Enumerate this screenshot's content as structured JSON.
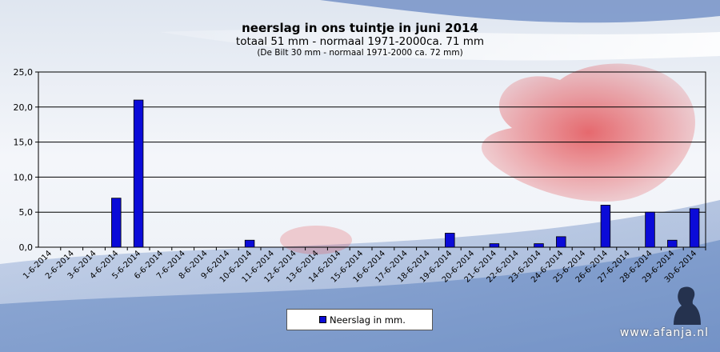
{
  "header": {
    "title": "neerslag in ons tuintje in juni 2014",
    "subtitle": "totaal 51 mm - normaal 1971-2000ca. 71 mm",
    "note": "(De Bilt 30 mm - normaal 1971-2000 ca. 72 mm)"
  },
  "legend": {
    "label": "Neerslag in mm."
  },
  "watermark": {
    "text": "www.afanja.nl"
  },
  "chart_data": {
    "type": "bar",
    "title": "neerslag in ons tuintje in juni 2014",
    "xlabel": "",
    "ylabel": "",
    "ylim": [
      0,
      25
    ],
    "ytick_labels": [
      "0,0",
      "5,0",
      "10,0",
      "15,0",
      "20,0",
      "25,0"
    ],
    "grid": true,
    "legend_position": "bottom-center",
    "bar_color": "#0b0bd8",
    "categories": [
      "1-6-2014",
      "2-6-2014",
      "3-6-2014",
      "4-6-2014",
      "5-6-2014",
      "6-6-2014",
      "7-6-2014",
      "8-6-2014",
      "9-6-2014",
      "10-6-2014",
      "11-6-2014",
      "12-6-2014",
      "13-6-2014",
      "14-6-2014",
      "15-6-2014",
      "16-6-2014",
      "17-6-2014",
      "18-6-2014",
      "19-6-2014",
      "20-6-2014",
      "21-6-2014",
      "22-6-2014",
      "23-6-2014",
      "24-6-2014",
      "25-6-2014",
      "26-6-2014",
      "27-6-2014",
      "28-6-2014",
      "29-6-2014",
      "30-6-2014"
    ],
    "series": [
      {
        "name": "Neerslag in mm.",
        "values": [
          0,
          0,
          0,
          7,
          21,
          0,
          0,
          0,
          0,
          1,
          0,
          0,
          0,
          0,
          0,
          0,
          0,
          0,
          2,
          0,
          0.5,
          0,
          0.5,
          1.5,
          0,
          6,
          0,
          5,
          1,
          5.5
        ]
      }
    ]
  }
}
